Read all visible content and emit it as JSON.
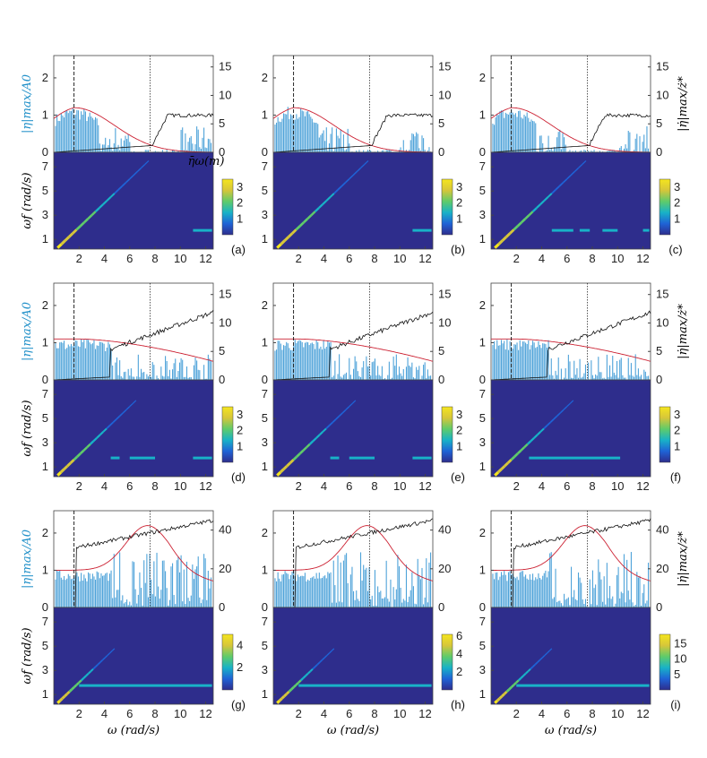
{
  "figure": {
    "y_label_left": "|η|max/A0",
    "y_label_right": "|η̇|max/ż*",
    "y_label_heatmap": "ωf (rad/s)",
    "x_label": "ω (rad/s)",
    "mean_label": "η̄ω(m)",
    "x_ticks": [
      "2",
      "4",
      "6",
      "8",
      "10",
      "12"
    ],
    "left_ticks": [
      "0",
      "1",
      "2"
    ],
    "heat_ticks": [
      "1",
      "3",
      "5",
      "7"
    ]
  },
  "colors": {
    "bars": "#4fa3d9",
    "response_curve": "#cc2233",
    "velocity_curve": "#111111",
    "heat_background": "#2e2d8c",
    "colormap": [
      "#2e2d8c",
      "#1f63d6",
      "#18b2c7",
      "#5fcb6a",
      "#d6c63a",
      "#f5e51e"
    ]
  },
  "chart_data": [
    {
      "panel": "a",
      "type": "bar",
      "rows": 0,
      "right_ticks": [
        "0",
        "5",
        "10",
        "15"
      ],
      "right_max": 17,
      "colorbar": [
        "1",
        "2",
        "3"
      ],
      "cb_max": 3.5,
      "dash1": 1.6,
      "dash2": 7.6,
      "red_peak": 1.6,
      "red_peak_val": 1.2,
      "red_end": 0.3,
      "x": [
        0,
        1,
        2,
        3,
        4,
        5,
        6,
        7,
        8,
        9,
        10,
        11,
        12.5
      ]
    },
    {
      "panel": "b",
      "type": "bar",
      "right_ticks": [
        "0",
        "5",
        "10",
        "15"
      ],
      "right_max": 17,
      "colorbar": [
        "1",
        "2",
        "3"
      ],
      "cb_max": 3.5
    },
    {
      "panel": "c",
      "type": "bar",
      "right_ticks": [
        "0",
        "5",
        "10",
        "15"
      ],
      "right_max": 17,
      "colorbar": [
        "1",
        "2",
        "3"
      ],
      "cb_max": 3.5
    },
    {
      "panel": "d",
      "type": "bar",
      "right_ticks": [
        "0",
        "5",
        "10",
        "15"
      ],
      "right_max": 17,
      "colorbar": [
        "1",
        "2",
        "3"
      ],
      "cb_max": 3.5
    },
    {
      "panel": "e",
      "type": "bar",
      "right_ticks": [
        "0",
        "5",
        "10",
        "15"
      ],
      "right_max": 17,
      "colorbar": [
        "1",
        "2",
        "3"
      ],
      "cb_max": 3.5
    },
    {
      "panel": "f",
      "type": "bar",
      "right_ticks": [
        "0",
        "5",
        "10",
        "15"
      ],
      "right_max": 17,
      "colorbar": [
        "1",
        "2",
        "3"
      ],
      "cb_max": 3.5
    },
    {
      "panel": "g",
      "type": "bar",
      "right_ticks": [
        "0",
        "20",
        "40"
      ],
      "right_max": 50,
      "colorbar": [
        "2",
        "4"
      ],
      "cb_max": 5
    },
    {
      "panel": "h",
      "type": "bar",
      "right_ticks": [
        "0",
        "20",
        "40"
      ],
      "right_max": 50,
      "colorbar": [
        "2",
        "4",
        "6"
      ],
      "cb_max": 6.2
    },
    {
      "panel": "i",
      "type": "bar",
      "right_ticks": [
        "0",
        "20",
        "40"
      ],
      "right_max": 50,
      "colorbar": [
        "5",
        "10",
        "15"
      ],
      "cb_max": 18
    }
  ]
}
